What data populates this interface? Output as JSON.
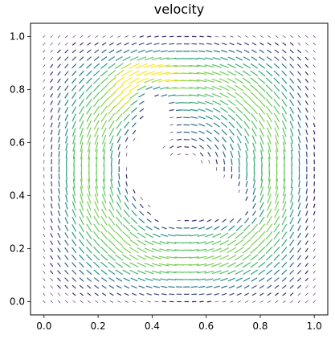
{
  "chart_data": {
    "type": "quiver",
    "title": "velocity",
    "xlabel": "",
    "ylabel": "",
    "xlim": [
      -0.05,
      1.05
    ],
    "ylim": [
      -0.05,
      1.05
    ],
    "xticks": [
      0.0,
      0.2,
      0.4,
      0.6,
      0.8,
      1.0
    ],
    "yticks": [
      0.0,
      0.2,
      0.4,
      0.6,
      0.8,
      1.0
    ],
    "xtick_labels": [
      "0.0",
      "0.2",
      "0.4",
      "0.6",
      "0.8",
      "1.0"
    ],
    "ytick_labels": [
      "0.0",
      "0.2",
      "0.4",
      "0.6",
      "0.8",
      "1.0"
    ],
    "grid": false,
    "colormap": "viridis",
    "colormap_stops": [
      "#440154",
      "#3b528b",
      "#21918c",
      "#5ec962",
      "#fde725"
    ],
    "field": {
      "kind": "circulation around a dolphin-shaped obstacle",
      "vortex_center": [
        0.52,
        0.5
      ],
      "rotation": "counter-clockwise",
      "peak_speed_location": [
        0.37,
        0.84
      ],
      "obstacle_outline": [
        [
          0.4,
          0.79
        ],
        [
          0.45,
          0.75
        ],
        [
          0.47,
          0.68
        ],
        [
          0.46,
          0.62
        ],
        [
          0.44,
          0.58
        ],
        [
          0.46,
          0.55
        ],
        [
          0.52,
          0.55
        ],
        [
          0.58,
          0.52
        ],
        [
          0.64,
          0.49
        ],
        [
          0.7,
          0.45
        ],
        [
          0.74,
          0.39
        ],
        [
          0.76,
          0.34
        ],
        [
          0.72,
          0.33
        ],
        [
          0.64,
          0.32
        ],
        [
          0.58,
          0.33
        ],
        [
          0.5,
          0.31
        ],
        [
          0.44,
          0.3
        ],
        [
          0.41,
          0.32
        ],
        [
          0.39,
          0.36
        ],
        [
          0.36,
          0.4
        ],
        [
          0.32,
          0.45
        ],
        [
          0.3,
          0.52
        ],
        [
          0.31,
          0.58
        ],
        [
          0.34,
          0.62
        ],
        [
          0.36,
          0.66
        ],
        [
          0.37,
          0.72
        ],
        [
          0.38,
          0.77
        ]
      ]
    }
  },
  "colors": {
    "background": "#ffffff",
    "axes": "#000000"
  }
}
